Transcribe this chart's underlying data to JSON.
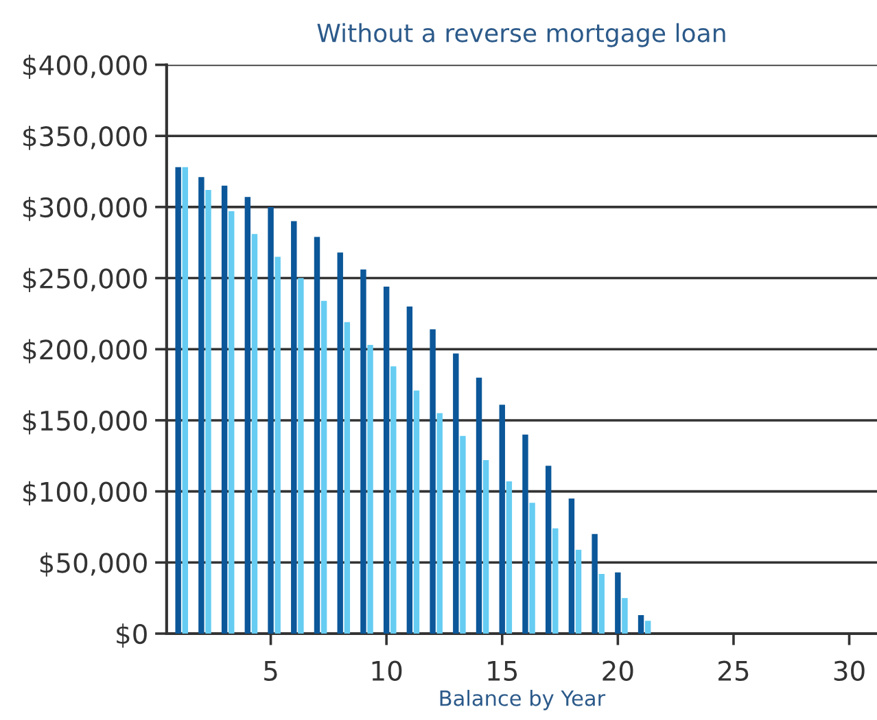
{
  "chart_data": {
    "type": "bar",
    "title": "Without a reverse mortgage loan",
    "xlabel": "Balance by Year",
    "x": [
      1,
      2,
      3,
      4,
      5,
      6,
      7,
      8,
      9,
      10,
      11,
      12,
      13,
      14,
      15,
      16,
      17,
      18,
      19,
      20,
      21
    ],
    "series": [
      {
        "color": "#0b5799",
        "values": [
          328000,
          321000,
          315000,
          307000,
          300000,
          290000,
          279000,
          268000,
          256000,
          244000,
          230000,
          214000,
          197000,
          180000,
          161000,
          140000,
          118000,
          95000,
          70000,
          43000,
          13000
        ]
      },
      {
        "color": "#66ccf2",
        "values": [
          328000,
          312000,
          297000,
          281000,
          265000,
          250000,
          234000,
          219000,
          203000,
          188000,
          171000,
          155000,
          139000,
          122000,
          107000,
          92000,
          74000,
          59000,
          42000,
          25000,
          9000
        ]
      }
    ],
    "xlim": [
      0.5,
      31.2
    ],
    "xticks": [
      5,
      10,
      15,
      20,
      25,
      30
    ],
    "ylim": [
      0,
      400000
    ],
    "yticks": [
      {
        "value": 0,
        "label": "$0"
      },
      {
        "value": 50000,
        "label": "$50,000"
      },
      {
        "value": 100000,
        "label": "$100,000"
      },
      {
        "value": 150000,
        "label": "$150,000"
      },
      {
        "value": 200000,
        "label": "$200,000"
      },
      {
        "value": 250000,
        "label": "$250,000"
      },
      {
        "value": 300000,
        "label": "$300,000"
      },
      {
        "value": 350000,
        "label": "$350,000"
      },
      {
        "value": 400000,
        "label": "$400,000"
      }
    ],
    "grid": "y"
  }
}
